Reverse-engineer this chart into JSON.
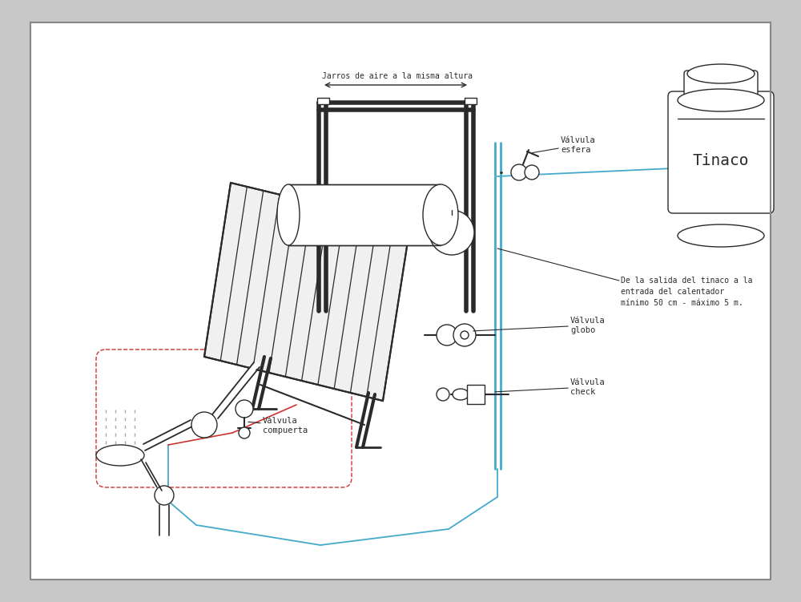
{
  "bg_color": "#c8c8c8",
  "page_bg": "#ffffff",
  "lc": "#2a2a2a",
  "rc": "#cc3333",
  "bc": "#44aacc",
  "label_tinaco": "Tinaco",
  "label_ve": "Válvula\nesfera",
  "label_vg": "Válvula\nglobo",
  "label_vc": "Válvula\ncheck",
  "label_vcmp": "Válvula\ncompuerta",
  "label_jarros": "Jarros de aire a la misma altura",
  "label_note": "De la salida del tinaco a la\nentrada del calentador\nmínimo 50 cm - máximo 5 m.",
  "fs": 7.5,
  "fs_tinaco": 14
}
